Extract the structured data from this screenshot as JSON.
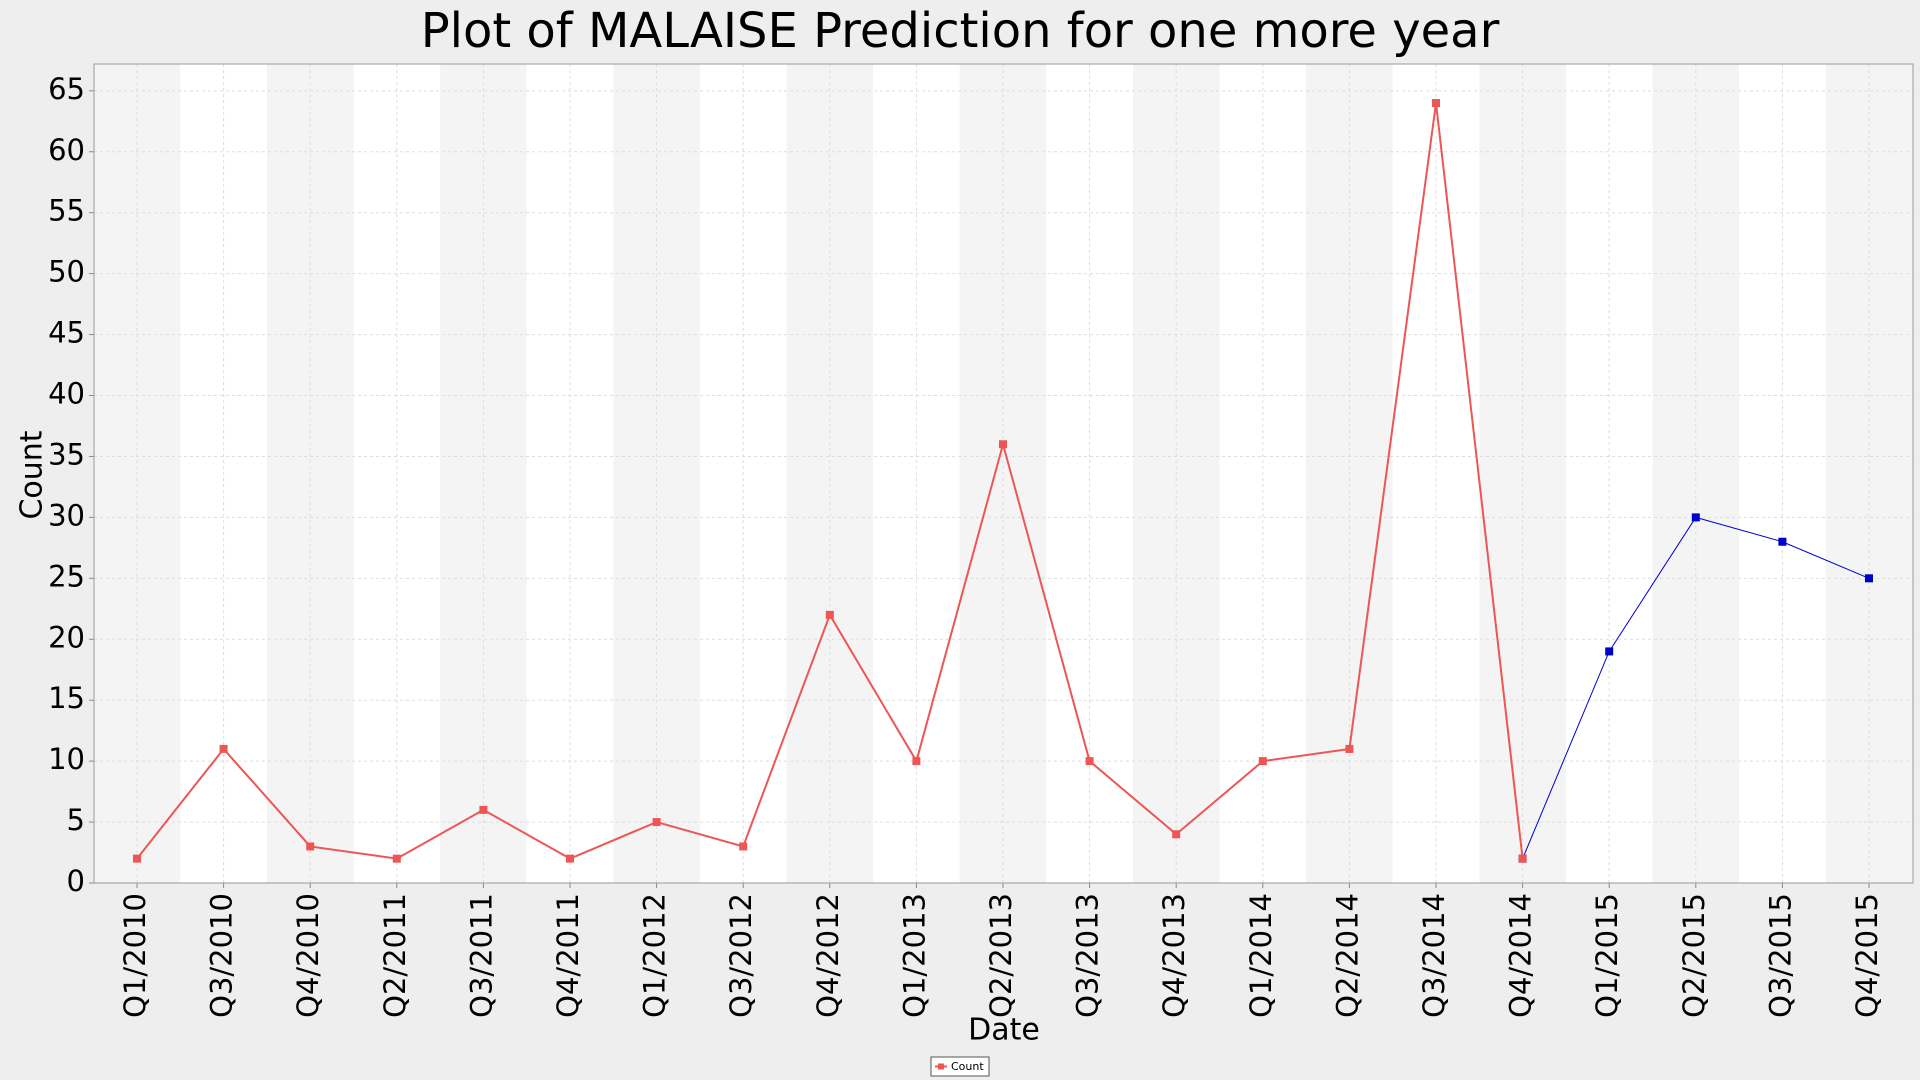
{
  "chart_data": {
    "type": "line",
    "title": "Plot of MALAISE Prediction for one more year",
    "x_label": "Date",
    "y_label": "Count",
    "categories": [
      "Q1/2010",
      "Q3/2010",
      "Q4/2010",
      "Q2/2011",
      "Q3/2011",
      "Q4/2011",
      "Q1/2012",
      "Q3/2012",
      "Q4/2012",
      "Q1/2013",
      "Q2/2013",
      "Q3/2013",
      "Q4/2013",
      "Q1/2014",
      "Q2/2014",
      "Q3/2014",
      "Q4/2014",
      "Q1/2015",
      "Q2/2015",
      "Q3/2015",
      "Q4/2015"
    ],
    "series": [
      {
        "name": "Count",
        "color": "#ee5555",
        "values": [
          2,
          11,
          3,
          2,
          6,
          2,
          5,
          3,
          22,
          10,
          36,
          10,
          4,
          10,
          11,
          64,
          2,
          null,
          null,
          null,
          null
        ]
      },
      {
        "color": "#0000cc",
        "values": [
          null,
          null,
          null,
          null,
          null,
          null,
          null,
          null,
          null,
          null,
          null,
          null,
          null,
          null,
          null,
          null,
          2,
          19,
          30,
          28,
          25
        ]
      }
    ],
    "ylim": [
      0,
      67.2
    ],
    "yticks": [
      0,
      5,
      10,
      15,
      20,
      25,
      30,
      35,
      40,
      45,
      50,
      55,
      60,
      65
    ],
    "grid": true,
    "legend": "bottom"
  }
}
